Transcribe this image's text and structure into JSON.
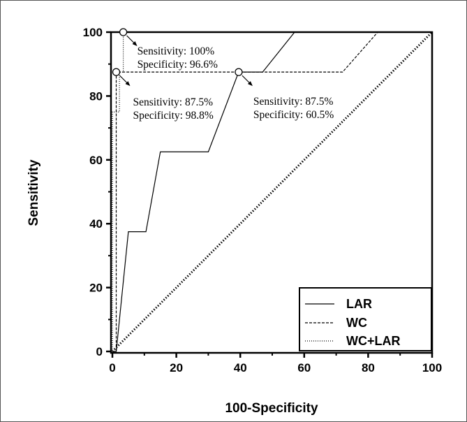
{
  "chart_data": {
    "type": "line",
    "xlabel": "100-Specificity",
    "ylabel": "Sensitivity",
    "xlim": [
      0,
      100
    ],
    "ylim": [
      0,
      100
    ],
    "xticks": [
      "0",
      "20",
      "40",
      "60",
      "80",
      "100"
    ],
    "yticks": [
      "0",
      "20",
      "40",
      "60",
      "80",
      "100"
    ],
    "grid": false,
    "legend_position": "bottom-right",
    "series": [
      {
        "name": "LAR",
        "style": "solid",
        "x": [
          0,
          1.2,
          5,
          10.5,
          15,
          30,
          39.5,
          47,
          57,
          100
        ],
        "y": [
          0,
          0,
          37.5,
          37.5,
          62.5,
          62.5,
          87.5,
          87.5,
          100,
          100
        ]
      },
      {
        "name": "WC",
        "style": "dashed",
        "x": [
          0,
          1.2,
          1.2,
          72,
          83,
          100
        ],
        "y": [
          0,
          0,
          87.5,
          87.5,
          100,
          100
        ]
      },
      {
        "name": "WC+LAR",
        "style": "dotted",
        "x": [
          0,
          0,
          2.2,
          2.2,
          3.4,
          3.4,
          100
        ],
        "y": [
          0,
          75,
          75,
          87.5,
          87.5,
          100,
          100
        ]
      }
    ],
    "reference_line": {
      "style": "thick-dotted",
      "x": [
        0,
        100
      ],
      "y": [
        0,
        100
      ]
    },
    "annotations": [
      {
        "point": [
          3.4,
          100
        ],
        "lines": [
          "Sensitivity: 100%",
          "Specificity: 96.6%"
        ]
      },
      {
        "point": [
          1.2,
          87.5
        ],
        "lines": [
          "Sensitivity: 87.5%",
          "Specificity: 98.8%"
        ]
      },
      {
        "point": [
          39.5,
          87.5
        ],
        "lines": [
          "Sensitivity: 87.5%",
          "Specificity: 60.5%"
        ]
      }
    ]
  }
}
